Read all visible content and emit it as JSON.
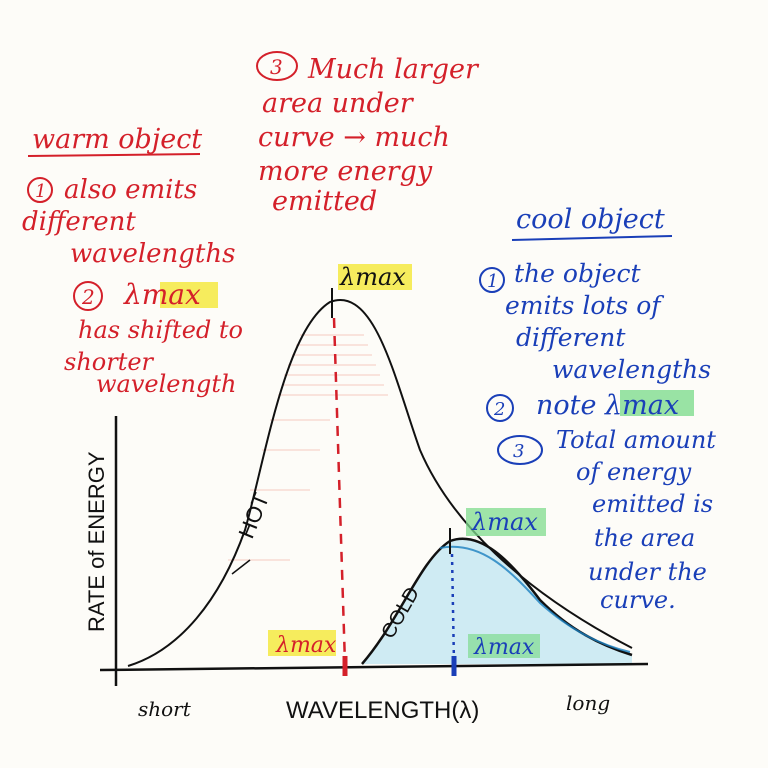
{
  "warm": {
    "title": "warm object",
    "note1_num": "1",
    "note1_lines": [
      "also emits",
      "different",
      "wavelengths"
    ],
    "note2_num": "2",
    "note2_lambda": "λmax",
    "note2_lines": [
      "has shifted to",
      "shorter",
      "wavelength"
    ]
  },
  "area": {
    "num": "3",
    "lines": [
      "Much larger",
      "area under",
      "curve → much",
      "more energy",
      "emitted"
    ]
  },
  "cool": {
    "title": "cool object",
    "note1_num": "1",
    "note1_lines": [
      "the object",
      "emits lots of",
      "different",
      "wavelengths"
    ],
    "note2_num": "2",
    "note2_text": "note λmax",
    "note3_num": "3",
    "note3_lines": [
      "Total amount",
      "of energy",
      "emitted is",
      "the area",
      "under the",
      "curve."
    ]
  },
  "axes": {
    "y_label": "RATE of ENERGY",
    "x_label": "WAVELENGTH(λ)",
    "x_short": "short",
    "x_long": "long"
  },
  "curves": {
    "hot_label": "HOT",
    "cold_label": "COLD",
    "hot_peak_label": "λmax",
    "cold_peak_label": "λmax",
    "hot_axis_label": "λmax",
    "cold_axis_label": "λmax"
  },
  "colors": {
    "warm_text": "#d4202a",
    "cool_text": "#1a3fb8",
    "highlight_yellow": "#f5e942",
    "highlight_green": "#7fdc8e",
    "cold_fill": "#bfe6f2"
  }
}
